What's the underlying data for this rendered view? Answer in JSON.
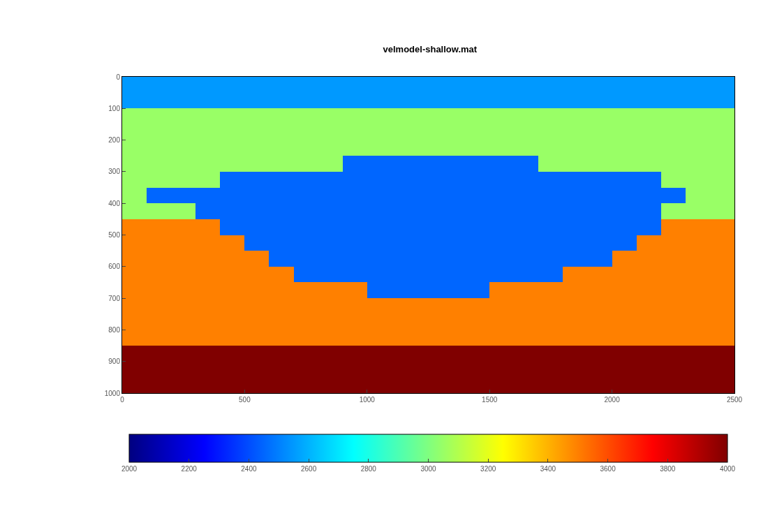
{
  "chart_data": {
    "type": "heatmap",
    "title": "velmodel-shallow.mat",
    "x": [
      50,
      150,
      250,
      350,
      450,
      550,
      650,
      750,
      850,
      950,
      1050,
      1150,
      1250,
      1350,
      1450,
      1550,
      1650,
      1750,
      1850,
      1950,
      2050,
      2150,
      2250,
      2350,
      2450
    ],
    "y": [
      25,
      75,
      125,
      175,
      225,
      275,
      325,
      375,
      425,
      475,
      525,
      575,
      625,
      675,
      725,
      775,
      825,
      875,
      925,
      975
    ],
    "cells": [
      [
        2550,
        2550,
        2550,
        2550,
        2550,
        2550,
        2550,
        2550,
        2550,
        2550,
        2550,
        2550,
        2550,
        2550,
        2550,
        2550,
        2550,
        2550,
        2550,
        2550,
        2550,
        2550,
        2550,
        2550,
        2550
      ],
      [
        2550,
        2550,
        2550,
        2550,
        2550,
        2550,
        2550,
        2550,
        2550,
        2550,
        2550,
        2550,
        2550,
        2550,
        2550,
        2550,
        2550,
        2550,
        2550,
        2550,
        2550,
        2550,
        2550,
        2550,
        2550
      ],
      [
        3050,
        3050,
        3050,
        3050,
        3050,
        3050,
        3050,
        3050,
        3050,
        3050,
        3050,
        3050,
        3050,
        3050,
        3050,
        3050,
        3050,
        3050,
        3050,
        3050,
        3050,
        3050,
        3050,
        3050,
        3050
      ],
      [
        3050,
        3050,
        3050,
        3050,
        3050,
        3050,
        3050,
        3050,
        3050,
        3050,
        3050,
        3050,
        3050,
        3050,
        3050,
        3050,
        3050,
        3050,
        3050,
        3050,
        3050,
        3050,
        3050,
        3050,
        3050
      ],
      [
        3050,
        3050,
        3050,
        3050,
        3050,
        3050,
        3050,
        3050,
        3050,
        3050,
        3050,
        3050,
        3050,
        3050,
        3050,
        3050,
        3050,
        3050,
        3050,
        3050,
        3050,
        3050,
        3050,
        3050,
        3050
      ],
      [
        3050,
        3050,
        3050,
        3050,
        3050,
        3050,
        3050,
        3050,
        3050,
        2450,
        2450,
        2450,
        2450,
        2450,
        2450,
        2450,
        2450,
        3050,
        3050,
        3050,
        3050,
        3050,
        3050,
        3050,
        3050
      ],
      [
        3050,
        3050,
        3050,
        3050,
        2450,
        2450,
        2450,
        2450,
        2450,
        2450,
        2450,
        2450,
        2450,
        2450,
        2450,
        2450,
        2450,
        2450,
        2450,
        2450,
        2450,
        2450,
        3050,
        3050,
        3050
      ],
      [
        3050,
        2450,
        2450,
        2450,
        2450,
        2450,
        2450,
        2450,
        2450,
        2450,
        2450,
        2450,
        2450,
        2450,
        2450,
        2450,
        2450,
        2450,
        2450,
        2450,
        2450,
        2450,
        2450,
        3050,
        3050
      ],
      [
        3050,
        3050,
        3050,
        2450,
        2450,
        2450,
        2450,
        2450,
        2450,
        2450,
        2450,
        2450,
        2450,
        2450,
        2450,
        2450,
        2450,
        2450,
        2450,
        2450,
        2450,
        2450,
        3050,
        3050,
        3050
      ],
      [
        3500,
        3500,
        3500,
        3500,
        2450,
        2450,
        2450,
        2450,
        2450,
        2450,
        2450,
        2450,
        2450,
        2450,
        2450,
        2450,
        2450,
        2450,
        2450,
        2450,
        2450,
        2450,
        3500,
        3500,
        3500
      ],
      [
        3500,
        3500,
        3500,
        3500,
        3500,
        2450,
        2450,
        2450,
        2450,
        2450,
        2450,
        2450,
        2450,
        2450,
        2450,
        2450,
        2450,
        2450,
        2450,
        2450,
        2450,
        3500,
        3500,
        3500,
        3500
      ],
      [
        3500,
        3500,
        3500,
        3500,
        3500,
        3500,
        2450,
        2450,
        2450,
        2450,
        2450,
        2450,
        2450,
        2450,
        2450,
        2450,
        2450,
        2450,
        2450,
        2450,
        3500,
        3500,
        3500,
        3500,
        3500
      ],
      [
        3500,
        3500,
        3500,
        3500,
        3500,
        3500,
        3500,
        2450,
        2450,
        2450,
        2450,
        2450,
        2450,
        2450,
        2450,
        2450,
        2450,
        2450,
        3500,
        3500,
        3500,
        3500,
        3500,
        3500,
        3500
      ],
      [
        3500,
        3500,
        3500,
        3500,
        3500,
        3500,
        3500,
        3500,
        3500,
        3500,
        2450,
        2450,
        2450,
        2450,
        2450,
        3500,
        3500,
        3500,
        3500,
        3500,
        3500,
        3500,
        3500,
        3500,
        3500
      ],
      [
        3500,
        3500,
        3500,
        3500,
        3500,
        3500,
        3500,
        3500,
        3500,
        3500,
        3500,
        3500,
        3500,
        3500,
        3500,
        3500,
        3500,
        3500,
        3500,
        3500,
        3500,
        3500,
        3500,
        3500,
        3500
      ],
      [
        3500,
        3500,
        3500,
        3500,
        3500,
        3500,
        3500,
        3500,
        3500,
        3500,
        3500,
        3500,
        3500,
        3500,
        3500,
        3500,
        3500,
        3500,
        3500,
        3500,
        3500,
        3500,
        3500,
        3500,
        3500
      ],
      [
        3500,
        3500,
        3500,
        3500,
        3500,
        3500,
        3500,
        3500,
        3500,
        3500,
        3500,
        3500,
        3500,
        3500,
        3500,
        3500,
        3500,
        3500,
        3500,
        3500,
        3500,
        3500,
        3500,
        3500,
        3500
      ],
      [
        4000,
        4000,
        4000,
        4000,
        4000,
        4000,
        4000,
        4000,
        4000,
        4000,
        4000,
        4000,
        4000,
        4000,
        4000,
        4000,
        4000,
        4000,
        4000,
        4000,
        4000,
        4000,
        4000,
        4000,
        4000
      ],
      [
        4000,
        4000,
        4000,
        4000,
        4000,
        4000,
        4000,
        4000,
        4000,
        4000,
        4000,
        4000,
        4000,
        4000,
        4000,
        4000,
        4000,
        4000,
        4000,
        4000,
        4000,
        4000,
        4000,
        4000,
        4000
      ],
      [
        4000,
        4000,
        4000,
        4000,
        4000,
        4000,
        4000,
        4000,
        4000,
        4000,
        4000,
        4000,
        4000,
        4000,
        4000,
        4000,
        4000,
        4000,
        4000,
        4000,
        4000,
        4000,
        4000,
        4000,
        4000
      ]
    ],
    "clim": [
      2000,
      4000
    ],
    "cticks": [
      2000,
      2200,
      2400,
      2600,
      2800,
      3000,
      3200,
      3400,
      3600,
      3800,
      4000
    ],
    "xlim": [
      0,
      2500
    ],
    "xticks": [
      0,
      500,
      1000,
      1500,
      2000,
      2500
    ],
    "ylim": [
      1000,
      0
    ],
    "yticks": [
      0,
      100,
      200,
      300,
      400,
      500,
      600,
      700,
      800,
      900,
      1000
    ]
  }
}
